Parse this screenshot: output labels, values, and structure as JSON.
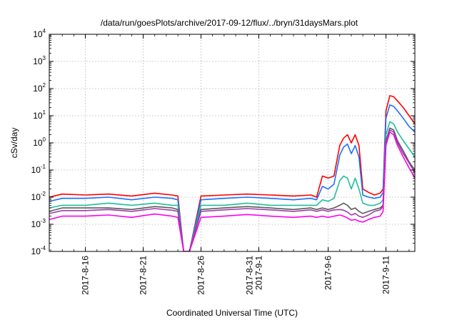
{
  "chart_data": {
    "type": "line",
    "title": "/data/run/goesPlots/archive/2017-09-12/flux/../bryn/31daysMars.plot",
    "xlabel": "Coordinated Universal Time (UTC)",
    "ylabel": "cSv/day",
    "x_range": [
      "2017-08-12T21:00",
      "2017-09-13T12:00"
    ],
    "y_scale": "log",
    "ylim": [
      0.0001,
      10000
    ],
    "grid": true,
    "x_ticks": [
      {
        "date": "2017-08-16",
        "lines": [
          "2017-8-16"
        ]
      },
      {
        "date": "2017-08-21",
        "lines": [
          "2017-8-21"
        ]
      },
      {
        "date": "2017-08-26",
        "lines": [
          "2017-8-26"
        ]
      },
      {
        "date": "2017-08-31",
        "lines": [
          "2017-8-31",
          "2017-9-1"
        ]
      },
      {
        "date": "2017-09-06",
        "lines": [
          "2017-9-6"
        ]
      },
      {
        "date": "2017-09-11",
        "lines": [
          "2017-9-11"
        ]
      }
    ],
    "y_ticks": [
      {
        "value": 0.0001,
        "base": "10",
        "exp": "-4"
      },
      {
        "value": 0.001,
        "base": "10",
        "exp": "-3"
      },
      {
        "value": 0.01,
        "base": "10",
        "exp": "-2"
      },
      {
        "value": 0.1,
        "base": "10",
        "exp": "-1"
      },
      {
        "value": 1,
        "base": "10",
        "exp": "0"
      },
      {
        "value": 10,
        "base": "10",
        "exp": "1"
      },
      {
        "value": 100,
        "base": "10",
        "exp": "2"
      },
      {
        "value": 1000,
        "base": "10",
        "exp": "3"
      },
      {
        "value": 10000,
        "base": "10",
        "exp": "4"
      }
    ],
    "series": [
      {
        "color": "#ff0000",
        "x": [
          "2017-08-12T21:00",
          "2017-08-14T00:00",
          "2017-08-16T00:00",
          "2017-08-18T00:00",
          "2017-08-20T00:00",
          "2017-08-22T00:00",
          "2017-08-23T12:00",
          "2017-08-24T00:00",
          "2017-08-24T12:00",
          "2017-08-25T00:00",
          "2017-08-26T00:00",
          "2017-08-28T00:00",
          "2017-08-30T00:00",
          "2017-09-01T00:00",
          "2017-09-03T00:00",
          "2017-09-04T12:00",
          "2017-09-05T00:00",
          "2017-09-05T12:00",
          "2017-09-06T00:00",
          "2017-09-06T12:00",
          "2017-09-07T00:00",
          "2017-09-07T08:00",
          "2017-09-07T16:00",
          "2017-09-08T00:00",
          "2017-09-08T08:00",
          "2017-09-08T16:00",
          "2017-09-09T00:00",
          "2017-09-09T12:00",
          "2017-09-10T00:00",
          "2017-09-10T12:00",
          "2017-09-10T18:00",
          "2017-09-11T00:00",
          "2017-09-11T08:00",
          "2017-09-11T16:00",
          "2017-09-12T00:00",
          "2017-09-12T12:00",
          "2017-09-13T00:00",
          "2017-09-13T12:00"
        ],
        "y": [
          0.01,
          0.013,
          0.012,
          0.013,
          0.011,
          0.014,
          0.012,
          0.011,
          0.0001,
          0.0001,
          0.011,
          0.012,
          0.013,
          0.012,
          0.011,
          0.012,
          0.01,
          0.06,
          0.05,
          0.06,
          0.8,
          1.5,
          2.0,
          1.0,
          2.0,
          0.8,
          0.02,
          0.015,
          0.012,
          0.014,
          0.02,
          15,
          55,
          50,
          35,
          20,
          10,
          5
        ]
      },
      {
        "color": "#1e6fff",
        "x": [
          "2017-08-12T21:00",
          "2017-08-14T00:00",
          "2017-08-16T00:00",
          "2017-08-18T00:00",
          "2017-08-20T00:00",
          "2017-08-22T00:00",
          "2017-08-23T12:00",
          "2017-08-24T00:00",
          "2017-08-24T12:00",
          "2017-08-25T00:00",
          "2017-08-26T00:00",
          "2017-08-28T00:00",
          "2017-08-30T00:00",
          "2017-09-01T00:00",
          "2017-09-03T00:00",
          "2017-09-04T12:00",
          "2017-09-05T00:00",
          "2017-09-05T12:00",
          "2017-09-06T00:00",
          "2017-09-06T12:00",
          "2017-09-07T00:00",
          "2017-09-07T08:00",
          "2017-09-07T16:00",
          "2017-09-08T00:00",
          "2017-09-08T08:00",
          "2017-09-08T16:00",
          "2017-09-09T00:00",
          "2017-09-09T12:00",
          "2017-09-10T00:00",
          "2017-09-10T12:00",
          "2017-09-10T18:00",
          "2017-09-11T00:00",
          "2017-09-11T08:00",
          "2017-09-11T16:00",
          "2017-09-12T00:00",
          "2017-09-12T12:00",
          "2017-09-13T00:00",
          "2017-09-13T12:00"
        ],
        "y": [
          0.007,
          0.009,
          0.009,
          0.01,
          0.008,
          0.01,
          0.009,
          0.008,
          0.0001,
          0.0001,
          0.008,
          0.009,
          0.01,
          0.009,
          0.008,
          0.009,
          0.008,
          0.025,
          0.02,
          0.03,
          0.35,
          0.7,
          0.9,
          0.4,
          0.8,
          0.3,
          0.012,
          0.01,
          0.009,
          0.01,
          0.015,
          8,
          25,
          22,
          15,
          8,
          4,
          2.5
        ]
      },
      {
        "color": "#1ebe9b",
        "x": [
          "2017-08-12T21:00",
          "2017-08-14T00:00",
          "2017-08-16T00:00",
          "2017-08-18T00:00",
          "2017-08-20T00:00",
          "2017-08-22T00:00",
          "2017-08-23T12:00",
          "2017-08-24T00:00",
          "2017-08-24T12:00",
          "2017-08-25T00:00",
          "2017-08-26T00:00",
          "2017-08-28T00:00",
          "2017-08-30T00:00",
          "2017-09-01T00:00",
          "2017-09-03T00:00",
          "2017-09-04T12:00",
          "2017-09-05T00:00",
          "2017-09-05T12:00",
          "2017-09-06T00:00",
          "2017-09-06T12:00",
          "2017-09-07T00:00",
          "2017-09-07T08:00",
          "2017-09-07T16:00",
          "2017-09-08T00:00",
          "2017-09-08T08:00",
          "2017-09-08T16:00",
          "2017-09-09T00:00",
          "2017-09-09T12:00",
          "2017-09-10T00:00",
          "2017-09-10T12:00",
          "2017-09-10T18:00",
          "2017-09-11T00:00",
          "2017-09-11T08:00",
          "2017-09-11T16:00",
          "2017-09-12T00:00",
          "2017-09-12T12:00",
          "2017-09-13T00:00",
          "2017-09-13T12:00"
        ],
        "y": [
          0.004,
          0.005,
          0.005,
          0.006,
          0.005,
          0.006,
          0.005,
          0.005,
          0.0001,
          0.0001,
          0.005,
          0.005,
          0.006,
          0.005,
          0.005,
          0.005,
          0.005,
          0.008,
          0.007,
          0.009,
          0.04,
          0.06,
          0.05,
          0.02,
          0.05,
          0.02,
          0.006,
          0.005,
          0.005,
          0.006,
          0.008,
          2,
          6,
          5,
          2.5,
          1.2,
          0.6,
          0.3
        ]
      },
      {
        "color": "#5a5a5a",
        "x": [
          "2017-08-12T21:00",
          "2017-08-14T00:00",
          "2017-08-16T00:00",
          "2017-08-18T00:00",
          "2017-08-20T00:00",
          "2017-08-22T00:00",
          "2017-08-23T12:00",
          "2017-08-24T00:00",
          "2017-08-24T12:00",
          "2017-08-25T00:00",
          "2017-08-26T00:00",
          "2017-08-28T00:00",
          "2017-08-30T00:00",
          "2017-09-01T00:00",
          "2017-09-03T00:00",
          "2017-09-04T12:00",
          "2017-09-05T00:00",
          "2017-09-05T12:00",
          "2017-09-06T00:00",
          "2017-09-06T12:00",
          "2017-09-07T00:00",
          "2017-09-07T08:00",
          "2017-09-07T16:00",
          "2017-09-08T00:00",
          "2017-09-08T08:00",
          "2017-09-08T16:00",
          "2017-09-09T00:00",
          "2017-09-09T12:00",
          "2017-09-10T00:00",
          "2017-09-10T12:00",
          "2017-09-10T18:00",
          "2017-09-11T00:00",
          "2017-09-11T08:00",
          "2017-09-11T16:00",
          "2017-09-12T00:00",
          "2017-09-12T12:00",
          "2017-09-13T00:00",
          "2017-09-13T12:00"
        ],
        "y": [
          0.003,
          0.004,
          0.004,
          0.004,
          0.0035,
          0.0045,
          0.004,
          0.0035,
          0.0001,
          0.0001,
          0.0035,
          0.004,
          0.0045,
          0.004,
          0.0035,
          0.004,
          0.0035,
          0.004,
          0.0035,
          0.004,
          0.005,
          0.006,
          0.005,
          0.0035,
          0.004,
          0.003,
          0.0025,
          0.003,
          0.0035,
          0.004,
          0.005,
          1.2,
          3.5,
          3,
          1.2,
          0.5,
          0.2,
          0.1
        ]
      },
      {
        "color": "#9b3ea8",
        "x": [
          "2017-08-12T21:00",
          "2017-08-14T00:00",
          "2017-08-16T00:00",
          "2017-08-18T00:00",
          "2017-08-20T00:00",
          "2017-08-22T00:00",
          "2017-08-23T12:00",
          "2017-08-24T00:00",
          "2017-08-24T12:00",
          "2017-08-25T00:00",
          "2017-08-26T00:00",
          "2017-08-28T00:00",
          "2017-08-30T00:00",
          "2017-09-01T00:00",
          "2017-09-03T00:00",
          "2017-09-04T12:00",
          "2017-09-05T00:00",
          "2017-09-05T12:00",
          "2017-09-06T00:00",
          "2017-09-06T12:00",
          "2017-09-07T00:00",
          "2017-09-07T08:00",
          "2017-09-07T16:00",
          "2017-09-08T00:00",
          "2017-09-08T08:00",
          "2017-09-08T16:00",
          "2017-09-09T00:00",
          "2017-09-09T12:00",
          "2017-09-10T00:00",
          "2017-09-10T12:00",
          "2017-09-10T18:00",
          "2017-09-11T00:00",
          "2017-09-11T08:00",
          "2017-09-11T16:00",
          "2017-09-12T00:00",
          "2017-09-12T12:00",
          "2017-09-13T00:00",
          "2017-09-13T12:00"
        ],
        "y": [
          0.0025,
          0.0032,
          0.0032,
          0.0035,
          0.003,
          0.0038,
          0.0033,
          0.003,
          0.0001,
          0.0001,
          0.003,
          0.0034,
          0.0038,
          0.0034,
          0.003,
          0.0034,
          0.003,
          0.0034,
          0.003,
          0.0034,
          0.0035,
          0.0033,
          0.0028,
          0.0022,
          0.0025,
          0.002,
          0.0018,
          0.0022,
          0.003,
          0.0034,
          0.0045,
          1.0,
          3.0,
          2.5,
          1.0,
          0.4,
          0.18,
          0.08
        ]
      },
      {
        "color": "#ff00ee",
        "x": [
          "2017-08-12T21:00",
          "2017-08-14T00:00",
          "2017-08-16T00:00",
          "2017-08-18T00:00",
          "2017-08-20T00:00",
          "2017-08-22T00:00",
          "2017-08-23T12:00",
          "2017-08-24T00:00",
          "2017-08-24T12:00",
          "2017-08-25T00:00",
          "2017-08-26T00:00",
          "2017-08-28T00:00",
          "2017-08-30T00:00",
          "2017-09-01T00:00",
          "2017-09-03T00:00",
          "2017-09-04T12:00",
          "2017-09-05T00:00",
          "2017-09-05T12:00",
          "2017-09-06T00:00",
          "2017-09-06T12:00",
          "2017-09-07T00:00",
          "2017-09-07T08:00",
          "2017-09-07T16:00",
          "2017-09-08T00:00",
          "2017-09-08T08:00",
          "2017-09-08T16:00",
          "2017-09-09T00:00",
          "2017-09-09T12:00",
          "2017-09-10T00:00",
          "2017-09-10T12:00",
          "2017-09-10T18:00",
          "2017-09-11T00:00",
          "2017-09-11T08:00",
          "2017-09-11T16:00",
          "2017-09-12T00:00",
          "2017-09-12T12:00",
          "2017-09-13T00:00",
          "2017-09-13T12:00"
        ],
        "y": [
          0.0015,
          0.002,
          0.002,
          0.0022,
          0.0018,
          0.0024,
          0.002,
          0.0018,
          0.0001,
          0.0001,
          0.0018,
          0.002,
          0.0023,
          0.002,
          0.0018,
          0.002,
          0.0018,
          0.002,
          0.0018,
          0.002,
          0.0022,
          0.002,
          0.0017,
          0.0014,
          0.0015,
          0.0013,
          0.0012,
          0.0015,
          0.0018,
          0.002,
          0.003,
          0.8,
          2.5,
          2,
          0.8,
          0.3,
          0.12,
          0.05
        ]
      }
    ]
  }
}
